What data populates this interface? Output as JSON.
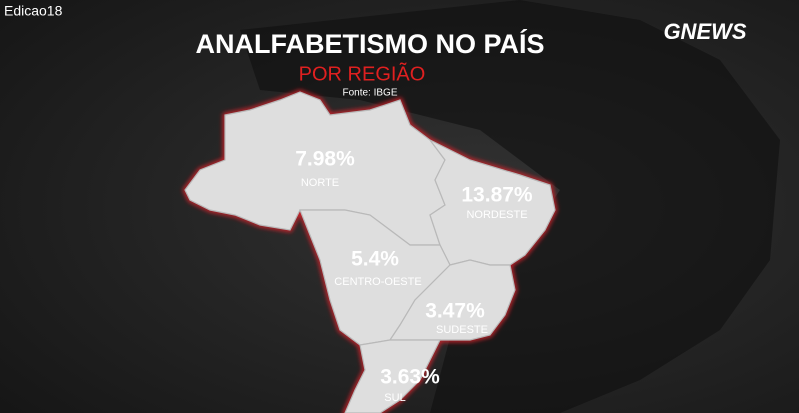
{
  "corner_label": "Edicao18",
  "logo": "GNEWS",
  "header": {
    "title": "ANALFABETISMO NO PAÍS",
    "subtitle": "POR REGIÃO",
    "source": "Fonte: IBGE"
  },
  "regions": [
    {
      "name": "NORTE",
      "value_label": "7.98%"
    },
    {
      "name": "NORDESTE",
      "value_label": "13.87%"
    },
    {
      "name": "CENTRO-OESTE",
      "value_label": "5.4%"
    },
    {
      "name": "SUDESTE",
      "value_label": "3.47%"
    },
    {
      "name": "SUL",
      "value_label": "3.63%"
    }
  ]
}
